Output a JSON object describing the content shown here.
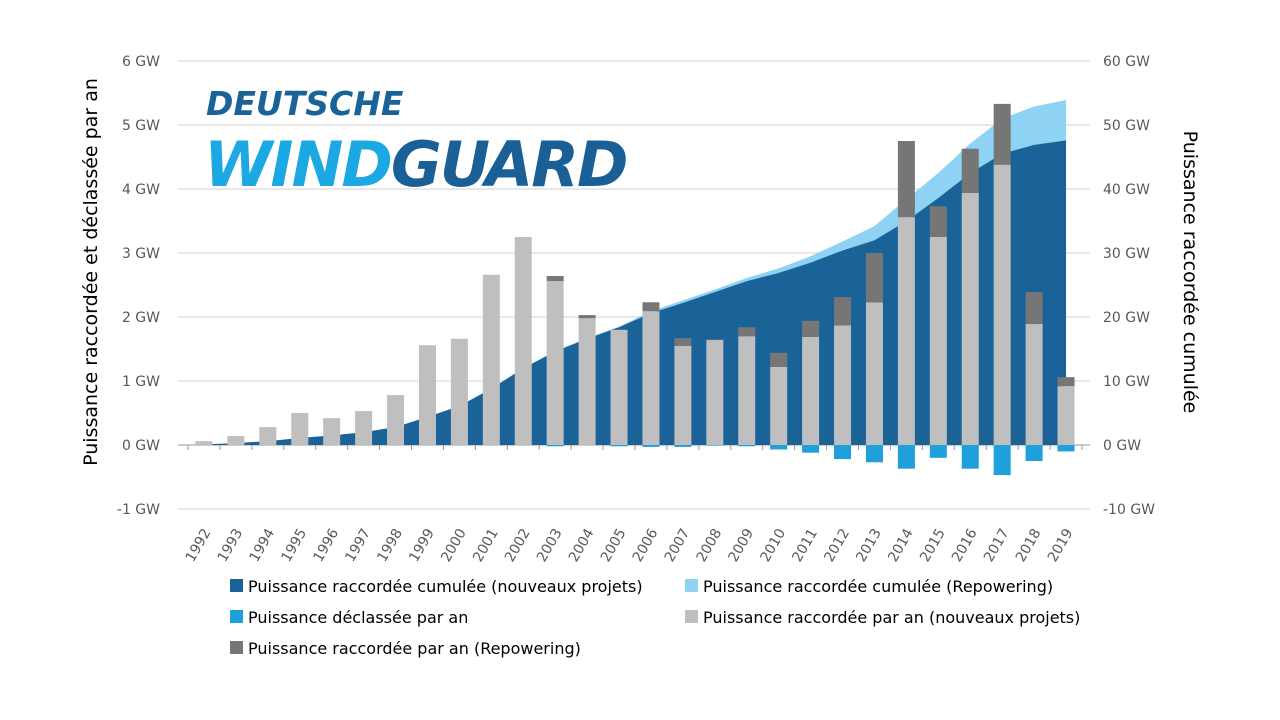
{
  "logo": {
    "line1": "DEUTSCHE",
    "line2a": "WIND",
    "line2b": "GUARD"
  },
  "chart_data": {
    "type": "bar",
    "title": "",
    "ylabel_left": "Puissance raccordée et déclassée par an",
    "ylabel_right": "Puissance raccordée cumulée",
    "ylim_left": [
      -1,
      6
    ],
    "ylim_right": [
      -10,
      60
    ],
    "yticks_left": [
      "-1 GW",
      "0 GW",
      "1 GW",
      "2 GW",
      "3 GW",
      "4 GW",
      "5 GW",
      "6 GW"
    ],
    "yticks_right": [
      "-10 GW",
      "0 GW",
      "10 GW",
      "20 GW",
      "30 GW",
      "40 GW",
      "50 GW",
      "60 GW"
    ],
    "grid": true,
    "legend_position": "bottom",
    "categories": [
      "1992",
      "1993",
      "1994",
      "1995",
      "1996",
      "1997",
      "1998",
      "1999",
      "2000",
      "2001",
      "2002",
      "2003",
      "2004",
      "2005",
      "2006",
      "2007",
      "2008",
      "2009",
      "2010",
      "2011",
      "2012",
      "2013",
      "2014",
      "2015",
      "2016",
      "2017",
      "2018",
      "2019"
    ],
    "series": [
      {
        "name": "Puissance raccordée cumulée (nouveaux projets)",
        "type": "area",
        "axis": "right",
        "color": "#1a6399",
        "values": [
          0.1,
          0.3,
          0.6,
          1.1,
          1.5,
          2.0,
          2.8,
          4.4,
          6.1,
          8.8,
          12.0,
          14.6,
          16.6,
          18.4,
          20.6,
          22.2,
          23.9,
          25.6,
          26.9,
          28.5,
          30.4,
          32.0,
          35.0,
          38.6,
          42.5,
          45.5,
          46.9,
          47.6
        ]
      },
      {
        "name": "Puissance raccordée cumulée (Repowering)",
        "type": "area",
        "axis": "right",
        "stacked_on": 0,
        "color": "#8fd3f4",
        "values": [
          0,
          0,
          0,
          0,
          0,
          0,
          0,
          0,
          0,
          0,
          0,
          0.1,
          0.1,
          0.1,
          0.3,
          0.4,
          0.4,
          0.5,
          0.7,
          1.0,
          1.4,
          2.2,
          3.4,
          3.9,
          4.6,
          5.5,
          6.0,
          6.3
        ]
      },
      {
        "name": "Puissance déclassée par an",
        "type": "bar",
        "axis": "left",
        "color": "#1ea0dc",
        "values": [
          0,
          0,
          0,
          0,
          0,
          0,
          0,
          0,
          0,
          0,
          0,
          -0.02,
          0,
          -0.02,
          -0.03,
          -0.03,
          -0.01,
          -0.02,
          -0.07,
          -0.12,
          -0.22,
          -0.27,
          -0.37,
          -0.2,
          -0.37,
          -0.47,
          -0.25,
          -0.1
        ]
      },
      {
        "name": "Puissance raccordée par an (nouveaux projets)",
        "type": "bar",
        "axis": "left",
        "color": "#bfbfbf",
        "values": [
          0.06,
          0.14,
          0.28,
          0.5,
          0.42,
          0.53,
          0.78,
          1.56,
          1.66,
          2.66,
          3.25,
          2.56,
          1.98,
          1.8,
          2.09,
          1.55,
          1.64,
          1.7,
          1.22,
          1.69,
          1.87,
          2.23,
          3.56,
          3.25,
          3.94,
          4.38,
          1.89,
          0.92
        ]
      },
      {
        "name": "Puissance raccordée par an (Repowering)",
        "type": "bar",
        "axis": "left",
        "stacked_on": 3,
        "color": "#767676",
        "values": [
          0,
          0,
          0,
          0,
          0,
          0,
          0,
          0,
          0,
          0,
          0,
          0.08,
          0.05,
          0,
          0.14,
          0.12,
          0.01,
          0.14,
          0.22,
          0.25,
          0.44,
          0.77,
          1.19,
          0.48,
          0.69,
          0.95,
          0.5,
          0.14
        ]
      }
    ]
  }
}
